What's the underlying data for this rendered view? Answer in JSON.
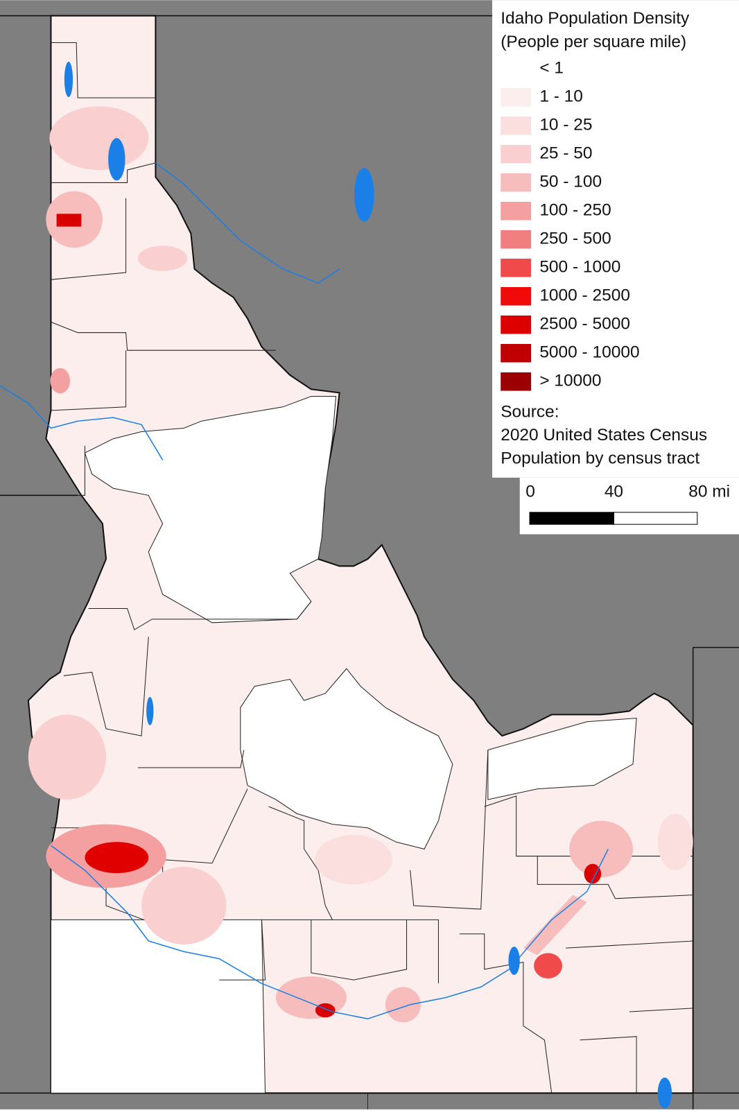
{
  "legend": {
    "title": [
      "Idaho Population Density",
      "(People per square mile)"
    ],
    "items": [
      {
        "label": "< 1",
        "color": "#ffffff"
      },
      {
        "label": "1 - 10",
        "color": "#fdeeee"
      },
      {
        "label": "10 - 25",
        "color": "#fbdfdf"
      },
      {
        "label": "25 - 50",
        "color": "#f9cfcf"
      },
      {
        "label": "50 - 100",
        "color": "#f7bdbd"
      },
      {
        "label": "100 - 250",
        "color": "#f4a0a0"
      },
      {
        "label": "250 - 500",
        "color": "#f27f7f"
      },
      {
        "label": "500 - 1000",
        "color": "#f04a4a"
      },
      {
        "label": "1000 - 2500",
        "color": "#f00a0a"
      },
      {
        "label": "2500 - 5000",
        "color": "#de0000"
      },
      {
        "label": "5000 - 10000",
        "color": "#c00000"
      },
      {
        "label": "> 10000",
        "color": "#9c0000"
      }
    ]
  },
  "source": [
    "Source:",
    "2020 United States Census",
    "Population by census tract"
  ],
  "scale_bar": {
    "labels": [
      "0",
      "40",
      "80 mi"
    ]
  }
}
